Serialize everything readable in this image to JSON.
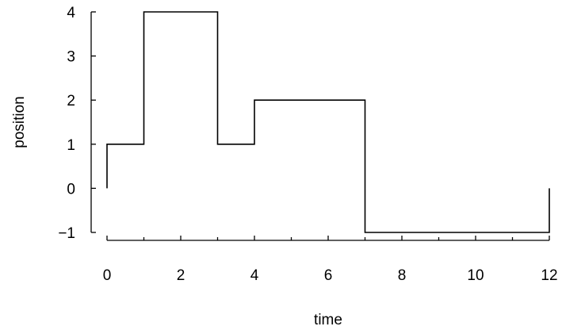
{
  "chart_data": {
    "type": "line",
    "step": true,
    "xlabel": "time",
    "ylabel": "position",
    "xlim": [
      0,
      12
    ],
    "ylim": [
      -1,
      4
    ],
    "xticks": [
      0,
      2,
      4,
      6,
      8,
      10,
      12
    ],
    "xtick_labels": [
      "0",
      "2",
      "4",
      "6",
      "8",
      "10",
      "12"
    ],
    "xminor_ticks": [
      1,
      3,
      5,
      7,
      9,
      11
    ],
    "yticks": [
      -1,
      0,
      1,
      2,
      3,
      4
    ],
    "ytick_labels": [
      "−1",
      "0",
      "1",
      "2",
      "3",
      "4"
    ],
    "grid": false,
    "series": [
      {
        "x": [
          0,
          0,
          1,
          1,
          3,
          3,
          4,
          4,
          7,
          7,
          12,
          12
        ],
        "y": [
          0,
          1,
          1,
          4,
          4,
          1,
          1,
          2,
          2,
          -1,
          -1,
          0
        ],
        "color": "#000000"
      }
    ]
  }
}
